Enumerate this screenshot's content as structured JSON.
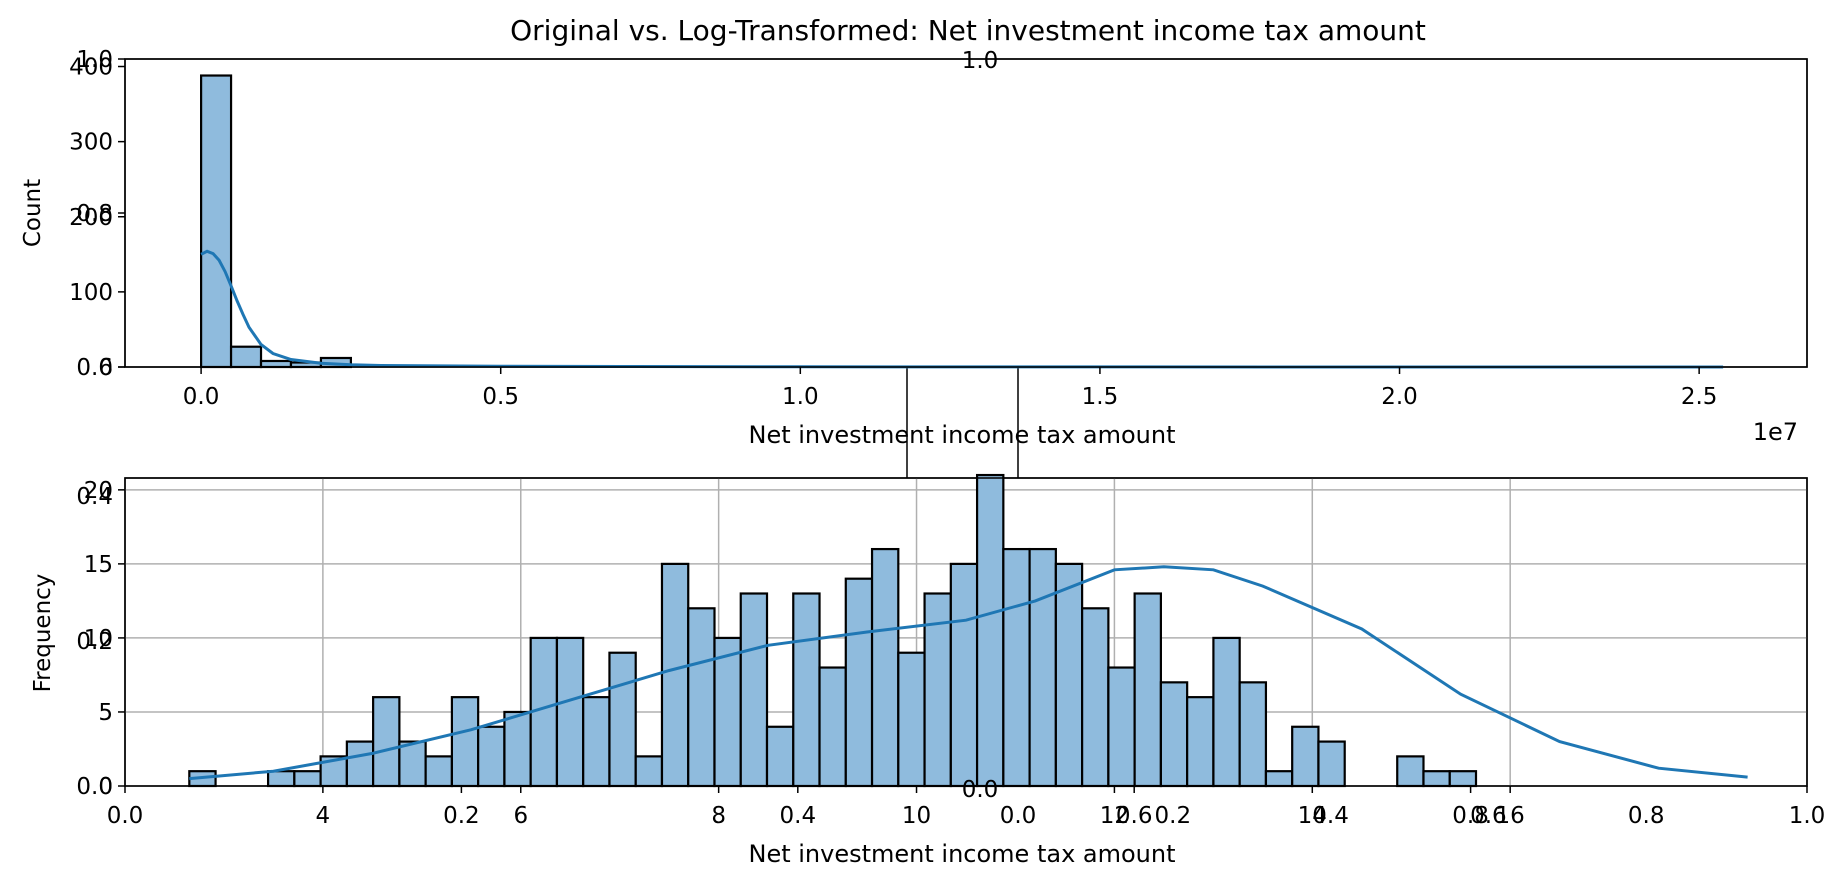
{
  "figure": {
    "suptitle": "Original vs. Log-Transformed: Net investment income tax amount"
  },
  "colors": {
    "bar_fill": "#8fbbdd",
    "bar_edge": "#000000",
    "kde_line": "#1f77b4",
    "grid": "#b0b0b0"
  },
  "chart_data": [
    {
      "type": "bar",
      "role": "histogram",
      "title": "",
      "xlabel": "Net investment income tax amount",
      "ylabel": "Count",
      "x_offset_label": "1e7",
      "xlim": [
        -0.127,
        2.68
      ],
      "ylim": [
        0,
        410
      ],
      "xticks": [
        0.0,
        0.5,
        1.0,
        1.5,
        2.0,
        2.5
      ],
      "xtick_labels": [
        "0.0",
        "0.5",
        "1.0",
        "1.5",
        "2.0",
        "2.5"
      ],
      "yticks": [
        0,
        100,
        200,
        300,
        400
      ],
      "ytick_labels": [
        "0",
        "100",
        "200",
        "300",
        "400"
      ],
      "grid": false,
      "bin_edges": [
        0.0,
        0.05,
        0.1,
        0.15,
        0.2,
        0.25
      ],
      "counts": [
        388,
        27,
        8,
        6,
        12
      ],
      "kde": {
        "x": [
          0.0,
          0.01,
          0.02,
          0.03,
          0.04,
          0.05,
          0.06,
          0.07,
          0.08,
          0.1,
          0.12,
          0.15,
          0.2,
          0.25,
          0.3,
          0.4,
          0.5,
          0.7,
          1.0,
          1.5,
          2.0,
          2.54
        ],
        "y": [
          150,
          154,
          151,
          142,
          127,
          108,
          88,
          70,
          53,
          30,
          18,
          10,
          5,
          3,
          2,
          1.5,
          1,
          0.6,
          0.3,
          0.1,
          0.05,
          0.02
        ]
      }
    },
    {
      "type": "bar",
      "role": "histogram",
      "title": "",
      "xlabel": "Net investment income tax amount",
      "ylabel": "Frequency",
      "xlim": [
        2.0,
        19.0
      ],
      "ylim": [
        0,
        20.8
      ],
      "xticks": [
        4,
        6,
        8,
        10,
        12,
        14,
        16
      ],
      "xtick_labels": [
        "4",
        "6",
        "8",
        "10",
        "12",
        "14",
        "16"
      ],
      "yticks": [
        0,
        5,
        10,
        15,
        20
      ],
      "ytick_labels": [
        "0",
        "5",
        "10",
        "15",
        "20"
      ],
      "grid": true,
      "bin_start": 2.65,
      "bin_width": 0.2654,
      "counts": [
        1,
        0,
        0,
        1,
        1,
        2,
        3,
        6,
        3,
        2,
        6,
        4,
        5,
        10,
        10,
        6,
        9,
        2,
        15,
        12,
        10,
        13,
        4,
        13,
        8,
        14,
        16,
        9,
        13,
        15,
        21,
        16,
        16,
        15,
        12,
        8,
        13,
        7,
        6,
        10,
        7,
        1,
        4,
        3,
        0,
        0,
        2,
        1,
        1
      ],
      "kde": {
        "x": [
          2.65,
          3.5,
          4.5,
          5.5,
          6.5,
          7.5,
          8.5,
          9.5,
          10.5,
          11.2,
          12.0,
          12.5,
          13.0,
          13.5,
          14.5,
          15.5,
          16.5,
          17.5,
          18.4
        ],
        "y": [
          0.5,
          1.0,
          2.2,
          3.8,
          5.8,
          7.8,
          9.5,
          10.4,
          11.2,
          12.5,
          14.6,
          14.8,
          14.6,
          13.5,
          10.6,
          6.2,
          3.0,
          1.2,
          0.6
        ]
      }
    },
    {
      "type": "scatter",
      "role": "empty-axes-overlay",
      "title": "",
      "xlim": [
        0,
        1
      ],
      "ylim": [
        0,
        1
      ],
      "xticks": [
        0.0,
        1.0
      ],
      "xtick_labels": [
        "0.0",
        "1.0"
      ],
      "yticks": [
        0.6,
        0.8,
        1.0
      ],
      "ytick_labels": [
        "0.6",
        "0.8",
        "1.0"
      ],
      "points": []
    },
    {
      "type": "scatter",
      "role": "empty-axes-overlay",
      "title": "",
      "xlim": [
        0,
        1
      ],
      "ylim": [
        0,
        1
      ],
      "xticks": [
        0.0,
        0.2,
        0.4,
        0.6,
        0.8,
        1.0
      ],
      "xtick_labels": [
        "0.0",
        "0.2",
        "0.4",
        "0.6",
        "0.8",
        "1.0"
      ],
      "yticks": [
        0.0,
        0.2,
        0.4
      ],
      "ytick_labels": [
        "0.0",
        "0.2",
        "0.4"
      ],
      "points": []
    }
  ]
}
